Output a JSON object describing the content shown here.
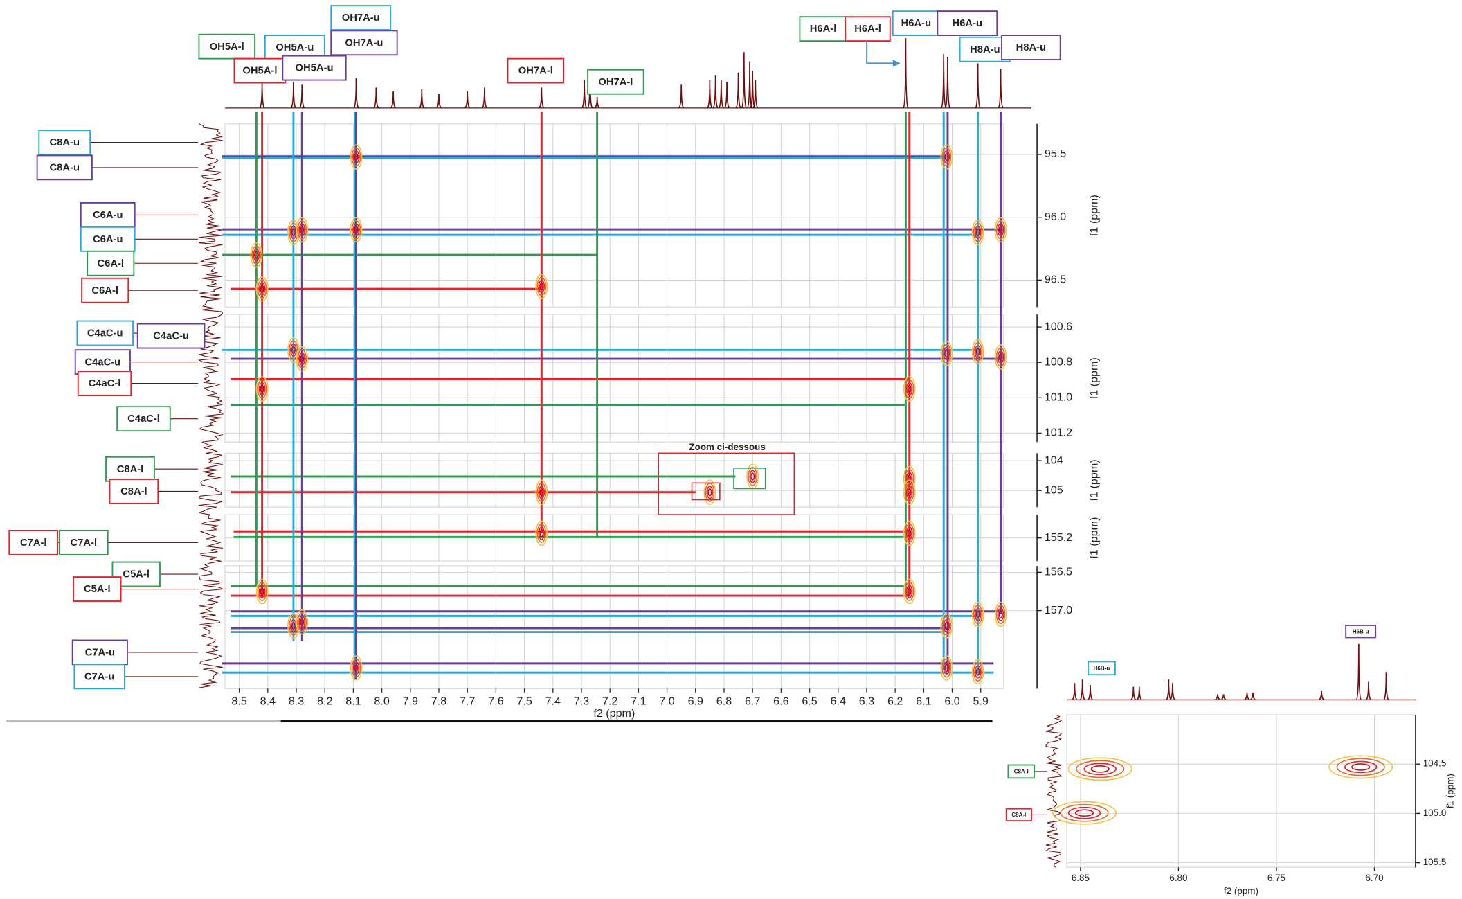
{
  "chart_data": [
    {
      "type": "hmbc",
      "xlabel": "f2 (ppm)",
      "ylabel": "f1 (ppm)",
      "annotation": "Zoom ci-dessous",
      "xlim": [
        8.55,
        5.82
      ],
      "xticks": [
        8.5,
        8.4,
        8.3,
        8.2,
        8.1,
        {
          "value": 8,
          "label": "8.0"
        },
        7.9,
        7.8,
        7.7,
        7.6,
        7.5,
        7.4,
        7.3,
        7.2,
        7.1,
        {
          "value": 7,
          "label": "7.0"
        },
        6.9,
        6.8,
        6.7,
        6.6,
        6.5,
        6.4,
        6.3,
        6.2,
        6.1,
        {
          "value": 6,
          "label": "6.0"
        },
        5.9
      ],
      "panels": [
        {
          "ylim": [
            95.256,
            96.715
          ],
          "yticks": [
            95.5,
            {
              "value": 96,
              "label": "96.0"
            },
            96.5
          ]
        },
        {
          "ylim": [
            100.53,
            101.25
          ],
          "yticks": [
            100.6,
            100.8,
            {
              "value": 101,
              "label": "101.0"
            },
            101.2
          ]
        },
        {
          "ylim": [
            103.75,
            105.56
          ],
          "yticks": [
            104,
            105
          ]
        },
        {
          "ylim": [
            154.95,
            155.45
          ],
          "yticks": [
            155.2
          ]
        },
        {
          "ylim": [
            156.415,
            158.02
          ],
          "yticks": [
            156.5,
            {
              "value": 157,
              "label": "157.0"
            }
          ]
        }
      ],
      "proton_labels": [
        {
          "text": "OH5A-l",
          "color": "#2e9b4e"
        },
        {
          "text": "OH5A-u",
          "color": "#2fa8d8"
        },
        {
          "text": "OH7A-u",
          "color": "#2fa8d8"
        },
        {
          "text": "OH7A-u",
          "color": "#6a3d9a"
        },
        {
          "text": "OH5A-l",
          "color": "#e8202a"
        },
        {
          "text": "OH5A-u",
          "color": "#6a3d9a"
        },
        {
          "text": "OH7A-l",
          "color": "#e8202a"
        },
        {
          "text": "OH7A-l",
          "color": "#2e9b4e"
        },
        {
          "text": "H6A-l",
          "color": "#2e9b4e"
        },
        {
          "text": "H6A-l",
          "color": "#e8202a"
        },
        {
          "text": "H6A-u",
          "color": "#2fa8d8"
        },
        {
          "text": "H6A-u",
          "color": "#6a3d9a"
        },
        {
          "text": "H8A-u",
          "color": "#2fa8d8"
        },
        {
          "text": "H8A-u",
          "color": "#6a3d9a"
        }
      ],
      "carbon_labels": [
        {
          "text": "C8A-u",
          "color": "#2fa8d8"
        },
        {
          "text": "C8A-u",
          "color": "#6a3d9a"
        },
        {
          "text": "C6A-u",
          "color": "#6a3d9a"
        },
        {
          "text": "C6A-u",
          "color": "#2fa8d8"
        },
        {
          "text": "C6A-l",
          "color": "#2e9b4e"
        },
        {
          "text": "C6A-l",
          "color": "#e8202a"
        },
        {
          "text": "C4aC-u",
          "color": "#2fa8d8"
        },
        {
          "text": "C4aC-u",
          "color": "#6a3d9a"
        },
        {
          "text": "C4aC-u",
          "color": "#6a3d9a"
        },
        {
          "text": "C4aC-l",
          "color": "#e8202a"
        },
        {
          "text": "C4aC-l",
          "color": "#2e9b4e"
        },
        {
          "text": "C8A-l",
          "color": "#2e9b4e"
        },
        {
          "text": "C8A-l",
          "color": "#e8202a"
        },
        {
          "text": "C7A-l",
          "color": "#e8202a"
        },
        {
          "text": "C7A-l",
          "color": "#2e9b4e"
        },
        {
          "text": "C5A-l",
          "color": "#2e9b4e"
        },
        {
          "text": "C5A-l",
          "color": "#e8202a"
        },
        {
          "text": "C7A-u",
          "color": "#6a3d9a"
        },
        {
          "text": "C7A-u",
          "color": "#2fa8d8"
        }
      ],
      "h_lines": [
        {
          "color": "#6a3d9a",
          "y": 95.515,
          "x": [
            8.56,
            6.03
          ]
        },
        {
          "color": "#2fa8d8",
          "y": 95.525,
          "x": [
            8.56,
            6.03
          ]
        },
        {
          "color": "#6a3d9a",
          "y": 96.096,
          "x": [
            8.56,
            5.83
          ]
        },
        {
          "color": "#2fa8d8",
          "y": 96.14,
          "x": [
            8.56,
            5.91
          ]
        },
        {
          "color": "#2e9b4e",
          "y": 96.3,
          "x": [
            8.56,
            7.245
          ]
        },
        {
          "color": "#e8202a",
          "y": 96.57,
          "x": [
            8.53,
            7.44
          ]
        },
        {
          "color": "#2fa8d8",
          "y": 100.73,
          "x": [
            8.56,
            5.91
          ]
        },
        {
          "color": "#6a3d9a",
          "y": 100.78,
          "x": [
            8.53,
            5.83
          ]
        },
        {
          "color": "#e8202a",
          "y": 100.895,
          "x": [
            8.53,
            6.15
          ]
        },
        {
          "color": "#2e9b4e",
          "y": 101.04,
          "x": [
            8.53,
            6.163
          ]
        },
        {
          "color": "#2e9b4e",
          "y": 104.53,
          "x": [
            8.53,
            6.76
          ]
        },
        {
          "color": "#e8202a",
          "y": 105.06,
          "x": [
            8.53,
            6.9
          ]
        },
        {
          "color": "#e8202a",
          "y": 155.13,
          "x": [
            8.52,
            6.15
          ]
        },
        {
          "color": "#2e9b4e",
          "y": 155.19,
          "x": [
            8.52,
            6.163
          ]
        },
        {
          "color": "#2e9b4e",
          "y": 156.68,
          "x": [
            8.53,
            6.163
          ]
        },
        {
          "color": "#e8202a",
          "y": 156.805,
          "x": [
            8.53,
            6.15
          ]
        },
        {
          "color": "#6a3d9a",
          "y": 157.01,
          "x": [
            8.53,
            5.83
          ]
        },
        {
          "color": "#2fa8d8",
          "y": 157.07,
          "x": [
            8.53,
            5.91
          ]
        },
        {
          "color": "#6a3d9a",
          "y": 157.23,
          "x": [
            8.53,
            6.016
          ]
        },
        {
          "color": "#2fa8d8",
          "y": 157.28,
          "x": [
            8.53,
            6.03
          ]
        },
        {
          "color": "#6a3d9a",
          "y": 157.69,
          "x": [
            8.56,
            5.855
          ]
        },
        {
          "color": "#2fa8d8",
          "y": 157.81,
          "x": [
            8.56,
            5.855
          ]
        }
      ],
      "v_lines": [
        {
          "color": "#2e9b4e",
          "x": 8.44,
          "y": 156.68
        },
        {
          "color": "#e8202a",
          "x": 8.42,
          "y": 156.8
        },
        {
          "color": "#2fa8d8",
          "x": 8.31,
          "y": 157.4
        },
        {
          "color": "#6a3d9a",
          "x": 8.28,
          "y": 157.4
        },
        {
          "color": "#2fa8d8",
          "x": 8.095,
          "y": 157.9
        },
        {
          "color": "#6a3d9a",
          "x": 8.09,
          "y": 157.9
        },
        {
          "color": "#e8202a",
          "x": 7.44,
          "y": 155.15
        },
        {
          "color": "#2e9b4e",
          "x": 7.245,
          "y": 155.2
        },
        {
          "color": "#2e9b4e",
          "x": 6.163,
          "y": 156.8
        },
        {
          "color": "#e8202a",
          "x": 6.15,
          "y": 156.8
        },
        {
          "color": "#2fa8d8",
          "x": 6.03,
          "y": 157.78
        },
        {
          "color": "#6a3d9a",
          "x": 6.016,
          "y": 157.78
        },
        {
          "color": "#2fa8d8",
          "x": 5.91,
          "y": 157.84
        },
        {
          "color": "#6a3d9a",
          "x": 5.83,
          "y": 157.05
        }
      ],
      "cross_peaks": {
        "x": [
          8.09,
          6.02,
          8.31,
          8.28,
          8.09,
          5.91,
          5.83,
          8.44,
          8.42,
          7.44,
          8.31,
          8.28,
          6.02,
          5.91,
          5.83,
          8.42,
          6.15,
          7.44,
          6.15,
          6.15,
          6.85,
          6.7,
          7.44,
          6.15,
          8.42,
          6.15,
          8.31,
          8.28,
          6.02,
          5.91,
          5.83,
          8.09,
          6.02,
          5.91
        ],
        "y": [
          95.52,
          95.52,
          96.12,
          96.1,
          96.1,
          96.12,
          96.1,
          96.3,
          96.57,
          96.55,
          100.73,
          100.78,
          100.75,
          100.74,
          100.77,
          100.95,
          100.95,
          105.06,
          104.6,
          105.06,
          105.06,
          104.53,
          155.15,
          155.15,
          156.75,
          156.75,
          157.2,
          157.15,
          157.2,
          157.05,
          157.05,
          157.75,
          157.75,
          157.8
        ]
      },
      "spectrum": {
        "x": [
          8.42,
          8.31,
          8.28,
          8.09,
          8.02,
          7.96,
          7.86,
          7.8,
          7.7,
          7.64,
          7.44,
          7.29,
          7.27,
          7.245,
          6.95,
          6.85,
          6.83,
          6.81,
          6.79,
          6.75,
          6.73,
          6.71,
          6.7,
          6.69,
          6.163,
          6.03,
          6.016,
          5.91,
          5.83
        ],
        "values": [
          30,
          28,
          25,
          32,
          22,
          18,
          20,
          15,
          18,
          22,
          22,
          30,
          40,
          12,
          25,
          30,
          35,
          30,
          28,
          38,
          60,
          50,
          40,
          30,
          75,
          58,
          55,
          48,
          42
        ]
      }
    },
    {
      "type": "hmbc",
      "xlabel": "f2 (ppm)",
      "ylabel": "f1 (ppm)",
      "xlim": [
        6.857,
        6.679
      ],
      "xticks": [
        6.85,
        {
          "value": 6.8,
          "label": "6.80"
        },
        6.75,
        {
          "value": 6.7,
          "label": "6.70"
        }
      ],
      "panels": [
        {
          "ylim": [
            104.0,
            105.547
          ],
          "yticks": [
            104.5,
            {
              "value": 105,
              "label": "105.0"
            },
            105.5
          ]
        }
      ],
      "proton_labels": [
        {
          "text": "H6B-u",
          "color": "#2fa8d8"
        },
        {
          "text": "H6B-u",
          "color": "#6a3d9a"
        }
      ],
      "carbon_labels": [
        {
          "text": "C8A-l",
          "color": "#2e9b4e"
        },
        {
          "text": "C8A-l",
          "color": "#e8202a"
        }
      ],
      "cross_peaks": {
        "x": [
          6.848,
          6.707,
          6.84
        ],
        "y": [
          104.995,
          104.53,
          104.55
        ]
      },
      "spectrum": {
        "x": [
          6.853,
          6.849,
          6.845,
          6.823,
          6.82,
          6.805,
          6.803,
          6.78,
          6.777,
          6.765,
          6.762,
          6.727,
          6.708,
          6.703,
          6.694
        ],
        "values": [
          18,
          22,
          16,
          14,
          14,
          22,
          18,
          6,
          6,
          8,
          8,
          10,
          60,
          20,
          30
        ]
      }
    }
  ]
}
